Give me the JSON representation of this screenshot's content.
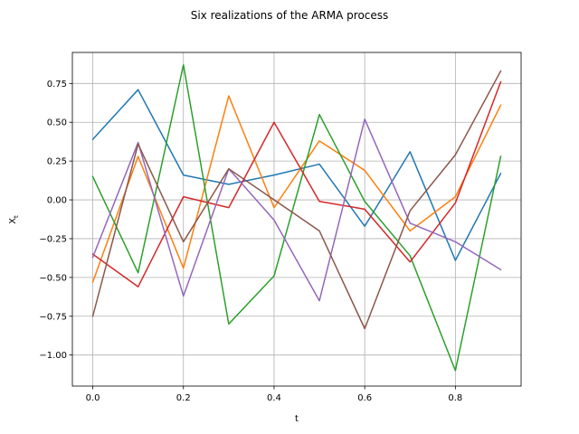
{
  "chart_data": {
    "type": "line",
    "title": "Six realizations of the ARMA process",
    "xlabel": "t",
    "ylabel_base": "X",
    "ylabel_sub": "t",
    "xlim": [
      -0.045,
      0.945
    ],
    "ylim": [
      -1.2,
      0.95
    ],
    "grid": true,
    "xticks": [
      0.0,
      0.2,
      0.4,
      0.6,
      0.8
    ],
    "xtick_labels": [
      "0.0",
      "0.2",
      "0.4",
      "0.6",
      "0.8"
    ],
    "yticks": [
      -1.0,
      -0.75,
      -0.5,
      -0.25,
      0.0,
      0.25,
      0.5,
      0.75
    ],
    "ytick_labels": [
      "−1.00",
      "−0.75",
      "−0.50",
      "−0.25",
      "0.00",
      "0.25",
      "0.50",
      "0.75"
    ],
    "x": [
      0.0,
      0.1,
      0.2,
      0.3,
      0.4,
      0.5,
      0.6,
      0.7,
      0.8,
      0.9
    ],
    "series": [
      {
        "color": "#1f77b4",
        "values": [
          0.39,
          0.71,
          0.16,
          0.1,
          0.16,
          0.23,
          -0.17,
          0.31,
          -0.39,
          0.17
        ]
      },
      {
        "color": "#ff7f0e",
        "values": [
          -0.53,
          0.28,
          -0.44,
          0.67,
          -0.05,
          0.38,
          0.19,
          -0.2,
          0.02,
          0.61
        ]
      },
      {
        "color": "#2ca02c",
        "values": [
          0.15,
          -0.47,
          0.87,
          -0.8,
          -0.49,
          0.55,
          -0.01,
          -0.36,
          -1.1,
          0.28
        ]
      },
      {
        "color": "#d62728",
        "values": [
          -0.35,
          -0.56,
          0.02,
          -0.05,
          0.5,
          -0.01,
          -0.06,
          -0.4,
          -0.02,
          0.76
        ]
      },
      {
        "color": "#9467bd",
        "values": [
          -0.37,
          0.37,
          -0.62,
          0.2,
          -0.13,
          -0.65,
          0.52,
          -0.15,
          -0.27,
          -0.45
        ]
      },
      {
        "color": "#8c564b",
        "values": [
          -0.75,
          0.36,
          -0.27,
          0.2,
          0.0,
          -0.2,
          -0.83,
          -0.07,
          0.29,
          0.83
        ]
      }
    ]
  }
}
